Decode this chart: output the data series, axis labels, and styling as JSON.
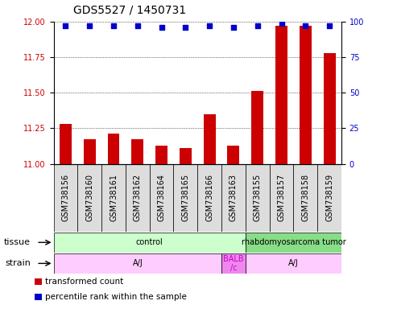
{
  "title": "GDS5527 / 1450731",
  "samples": [
    "GSM738156",
    "GSM738160",
    "GSM738161",
    "GSM738162",
    "GSM738164",
    "GSM738165",
    "GSM738166",
    "GSM738163",
    "GSM738155",
    "GSM738157",
    "GSM738158",
    "GSM738159"
  ],
  "bar_values": [
    11.28,
    11.17,
    11.21,
    11.17,
    11.13,
    11.11,
    11.35,
    11.13,
    11.51,
    11.97,
    11.97,
    11.78
  ],
  "dot_values": [
    97,
    97,
    97,
    97,
    96,
    96,
    97,
    96,
    97,
    99,
    97,
    97
  ],
  "bar_base": 11.0,
  "ylim_left": [
    11.0,
    12.0
  ],
  "ylim_right": [
    0,
    100
  ],
  "yticks_left": [
    11.0,
    11.25,
    11.5,
    11.75,
    12.0
  ],
  "yticks_right": [
    0,
    25,
    50,
    75,
    100
  ],
  "bar_color": "#cc0000",
  "dot_color": "#0000cc",
  "tissue_labels": [
    {
      "text": "control",
      "start": 0,
      "end": 8,
      "color": "#ccffcc"
    },
    {
      "text": "rhabdomyosarcoma tumor",
      "start": 8,
      "end": 12,
      "color": "#88dd88"
    }
  ],
  "strain_labels": [
    {
      "text": "A/J",
      "start": 0,
      "end": 7,
      "color": "#ffccff"
    },
    {
      "text": "BALB\n/c",
      "start": 7,
      "end": 8,
      "color": "#ee88ee"
    },
    {
      "text": "A/J",
      "start": 8,
      "end": 12,
      "color": "#ffccff"
    }
  ],
  "legend_items": [
    {
      "label": "transformed count",
      "color": "#cc0000"
    },
    {
      "label": "percentile rank within the sample",
      "color": "#0000cc"
    }
  ],
  "row_label_tissue": "tissue",
  "row_label_strain": "strain",
  "sample_cell_color": "#dddddd",
  "plot_bg": "#ffffff",
  "title_fontsize": 10,
  "tick_fontsize": 7,
  "row_fontsize": 7,
  "legend_fontsize": 7.5
}
